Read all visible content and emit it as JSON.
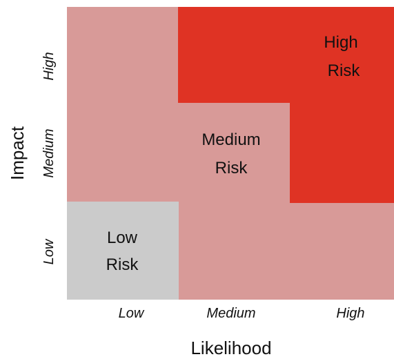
{
  "colors": {
    "low": "#cbcbcb",
    "medium": "#d89a98",
    "high": "#df3324"
  },
  "axes": {
    "x_title": "Likelihood",
    "y_title": "Impact",
    "x_ticks": [
      "Low",
      "Medium",
      "High"
    ],
    "y_ticks": [
      "Low",
      "Medium",
      "High"
    ]
  },
  "zones": {
    "high": {
      "line1": "High",
      "line2": "Risk"
    },
    "medium": {
      "line1": "Medium",
      "line2": "Risk"
    },
    "low": {
      "line1": "Low",
      "line2": "Risk"
    }
  }
}
